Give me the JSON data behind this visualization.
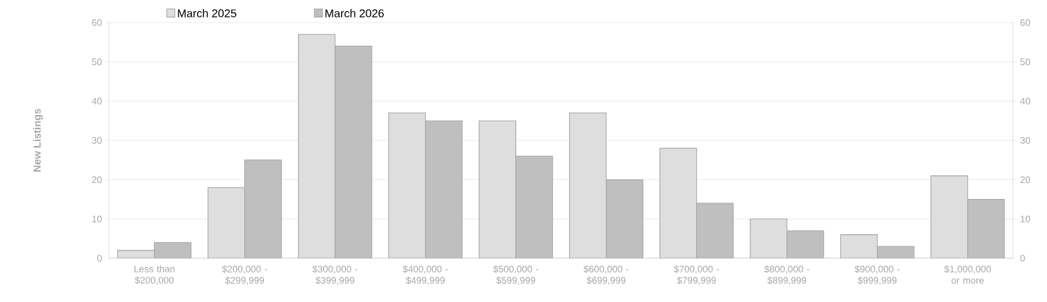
{
  "chart_data": {
    "type": "bar",
    "ylabel": "New Listings",
    "categories": [
      "Less than $200,000",
      "$200,000 - $299,999",
      "$300,000 - $399,999",
      "$400,000 - $499,999",
      "$500,000 - $599,999",
      "$600,000 - $699,999",
      "$700,000 - $799,999",
      "$800,000 - $899,999",
      "$900,000 - $999,999",
      "$1,000,000 or more"
    ],
    "series": [
      {
        "name": "March 2025",
        "color": "#dedede",
        "values": [
          2,
          18,
          57,
          37,
          35,
          37,
          28,
          10,
          6,
          21
        ]
      },
      {
        "name": "March 2026",
        "color": "#bfbfbf",
        "values": [
          4,
          25,
          54,
          35,
          26,
          20,
          14,
          7,
          3,
          15
        ]
      }
    ],
    "ylim": [
      0,
      60
    ],
    "yticks": [
      0,
      10,
      20,
      30,
      40,
      50,
      60
    ],
    "y2lim": [
      0,
      60
    ],
    "y2ticks": [
      0,
      10,
      20,
      30,
      40,
      50,
      60
    ],
    "grid": "y",
    "legend": "top left"
  }
}
